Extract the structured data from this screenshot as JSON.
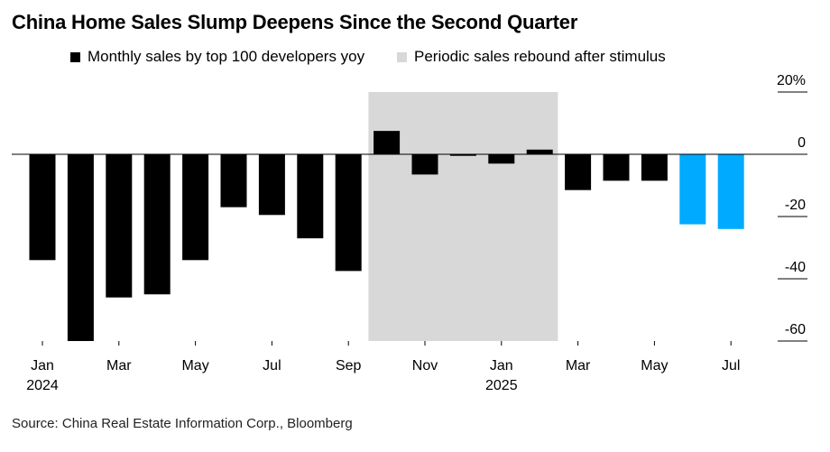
{
  "title": "China Home Sales Slump Deepens Since the Second Quarter",
  "legend": {
    "series_label": "Monthly sales by top 100 developers yoy",
    "shade_label": "Periodic sales rebound after stimulus"
  },
  "source": "Source: China Real Estate Information Corp., Bloomberg",
  "colors": {
    "bar": "#000000",
    "highlight": "#00aaff",
    "shade": "#d8d8d8",
    "axis": "#000000"
  },
  "chart_data": {
    "type": "bar",
    "title": "China Home Sales Slump Deepens Since the Second Quarter",
    "xlabel": "",
    "ylabel": "",
    "ylim": [
      -60,
      20
    ],
    "y_ticks": [
      {
        "value": 20,
        "label": "20%"
      },
      {
        "value": 0,
        "label": "0"
      },
      {
        "value": -20,
        "label": "-20"
      },
      {
        "value": -40,
        "label": "-40"
      },
      {
        "value": -60,
        "label": "-60"
      }
    ],
    "series": [
      {
        "name": "Monthly sales by top 100 developers yoy",
        "categories": [
          "2024-01",
          "2024-02",
          "2024-03",
          "2024-04",
          "2024-05",
          "2024-06",
          "2024-07",
          "2024-08",
          "2024-09",
          "2024-10",
          "2024-11",
          "2024-12",
          "2025-01",
          "2025-02",
          "2025-03",
          "2025-04",
          "2025-05",
          "2025-06",
          "2025-07"
        ],
        "values": [
          -34,
          -60,
          -46,
          -45,
          -34,
          -17,
          -19.5,
          -27,
          -37.5,
          7.5,
          -6.5,
          -0.5,
          -3,
          1.5,
          -11.5,
          -8.5,
          -8.5,
          -22.5,
          -24
        ]
      }
    ],
    "highlighted_months": [
      "2025-06",
      "2025-07"
    ],
    "shaded_period": {
      "label": "Periodic sales rebound after stimulus",
      "from": "2024-10",
      "to": "2025-02"
    },
    "x_ticks": [
      {
        "month": "2024-01",
        "label": "Jan",
        "year": "2024"
      },
      {
        "month": "2024-03",
        "label": "Mar"
      },
      {
        "month": "2024-05",
        "label": "May"
      },
      {
        "month": "2024-07",
        "label": "Jul"
      },
      {
        "month": "2024-09",
        "label": "Sep"
      },
      {
        "month": "2024-11",
        "label": "Nov"
      },
      {
        "month": "2025-01",
        "label": "Jan",
        "year": "2025"
      },
      {
        "month": "2025-03",
        "label": "Mar"
      },
      {
        "month": "2025-05",
        "label": "May"
      },
      {
        "month": "2025-07",
        "label": "Jul"
      }
    ],
    "grid": false
  }
}
